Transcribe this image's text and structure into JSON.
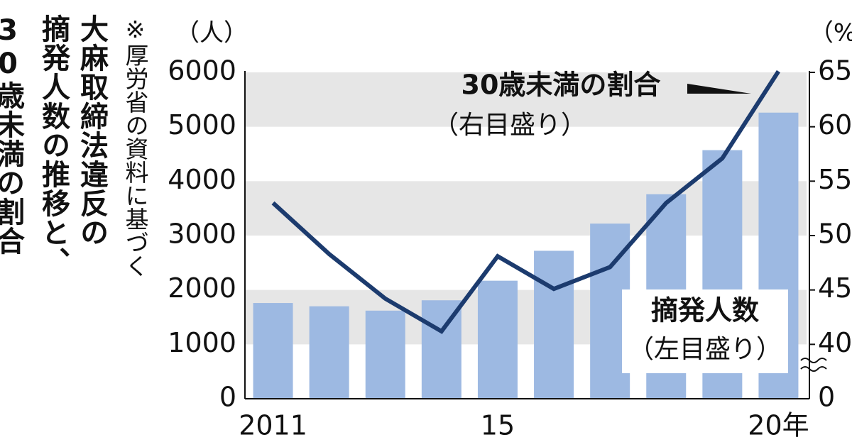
{
  "chart_data": {
    "type": "bar_line",
    "title_lines": [
      "大麻取締法違反の",
      "摘発人数の推移と、",
      "30歳未満の割合"
    ],
    "note": "※厚労省の資料に基づく",
    "y_unit": "（人）",
    "y2_unit": "（%）",
    "categories": [
      "2011",
      null,
      null,
      null,
      "15",
      null,
      null,
      null,
      null,
      "20年"
    ],
    "series": [
      {
        "name": "摘発人数",
        "scale_note": "（左目盛り）",
        "type": "bar",
        "color": "#9db9e2",
        "values": [
          1760,
          1700,
          1620,
          1810,
          2170,
          2720,
          3220,
          3760,
          4570,
          5260
        ]
      },
      {
        "name": "30歳未満の割合",
        "scale_note": "（右目盛り）",
        "type": "line",
        "axis": "y2",
        "color": "#1c3b6e",
        "values": [
          53.0,
          48.3,
          44.2,
          41.2,
          48.1,
          45.1,
          47.1,
          53.0,
          57.1,
          65.1
        ]
      }
    ],
    "ylim": [
      0,
      6000
    ],
    "yticks": [
      0,
      1000,
      2000,
      3000,
      4000,
      5000,
      6000
    ],
    "y2lim": [
      35,
      65
    ],
    "y2ticks": [
      40,
      45,
      50,
      55,
      60,
      65
    ],
    "y2_axis_break": 0,
    "grid": "bands"
  }
}
